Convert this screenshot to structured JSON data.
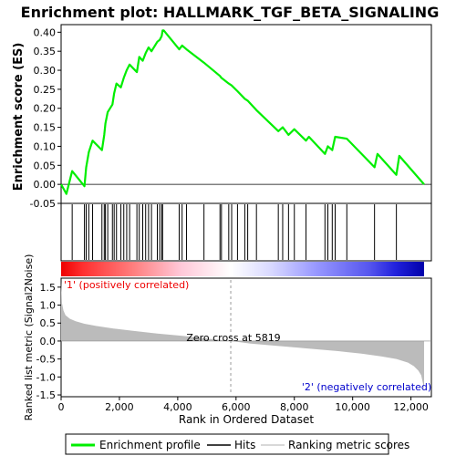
{
  "chart_data": {
    "type": "line",
    "title": "Enrichment plot: HALLMARK_TGF_BETA_SIGNALING",
    "es_panel": {
      "ylabel": "Enrichment score (ES)",
      "ylim": [
        -0.05,
        0.42
      ],
      "yticks": [
        "-0.05",
        "0.00",
        "0.05",
        "0.10",
        "0.15",
        "0.20",
        "0.25",
        "0.30",
        "0.35",
        "0.40"
      ],
      "ytick_values": [
        -0.05,
        0.0,
        0.05,
        0.1,
        0.15,
        0.2,
        0.25,
        0.3,
        0.35,
        0.4
      ],
      "series": [
        {
          "name": "Enrichment profile",
          "color": "#00ee00",
          "x": [
            0,
            180,
            380,
            800,
            860,
            950,
            1080,
            1400,
            1480,
            1520,
            1600,
            1760,
            1820,
            1900,
            2050,
            2150,
            2250,
            2350,
            2600,
            2680,
            2800,
            2900,
            3000,
            3100,
            3300,
            3380,
            3450,
            3480,
            3520,
            4050,
            4150,
            4300,
            4900,
            5450,
            5500,
            5750,
            5850,
            6050,
            6300,
            6400,
            6700,
            7450,
            7600,
            7800,
            8000,
            8400,
            8500,
            9050,
            9150,
            9300,
            9400,
            9800,
            10750,
            10850,
            11500,
            11600,
            12450
          ],
          "y": [
            0.0,
            -0.025,
            0.035,
            -0.005,
            0.045,
            0.085,
            0.115,
            0.09,
            0.13,
            0.16,
            0.19,
            0.21,
            0.24,
            0.265,
            0.255,
            0.28,
            0.3,
            0.315,
            0.295,
            0.335,
            0.325,
            0.345,
            0.36,
            0.35,
            0.375,
            0.38,
            0.39,
            0.405,
            0.405,
            0.355,
            0.365,
            0.355,
            0.32,
            0.285,
            0.28,
            0.265,
            0.26,
            0.245,
            0.225,
            0.22,
            0.195,
            0.14,
            0.15,
            0.13,
            0.145,
            0.115,
            0.125,
            0.08,
            0.1,
            0.09,
            0.125,
            0.12,
            0.045,
            0.08,
            0.025,
            0.075,
            0.0
          ]
        }
      ]
    },
    "hits": {
      "name": "Hits",
      "x": [
        380,
        800,
        860,
        950,
        1080,
        1400,
        1480,
        1520,
        1600,
        1760,
        1820,
        1900,
        2050,
        2150,
        2250,
        2350,
        2600,
        2680,
        2800,
        2900,
        3000,
        3100,
        3300,
        3380,
        3450,
        3480,
        4050,
        4150,
        4300,
        4900,
        5450,
        5500,
        5750,
        5850,
        6050,
        6300,
        6400,
        6700,
        7450,
        7600,
        7800,
        8000,
        8400,
        9050,
        9150,
        9300,
        9400,
        9800,
        10750,
        11500
      ]
    },
    "ranked_metric": {
      "name": "Ranking metric scores",
      "ylabel": "Ranked list metric (Signal2Noise)",
      "xlabel": "Rank in Ordered Dataset",
      "ylim": [
        -1.55,
        1.75
      ],
      "yticks": [
        "-1.5",
        "-1.0",
        "-0.5",
        "0.0",
        "0.5",
        "1.0",
        "1.5"
      ],
      "ytick_values": [
        -1.5,
        -1.0,
        -0.5,
        0.0,
        0.5,
        1.0,
        1.5
      ],
      "x": [
        0,
        30,
        80,
        150,
        300,
        500,
        800,
        1200,
        1800,
        2500,
        3300,
        4200,
        5000,
        5819,
        6500,
        7500,
        8500,
        9500,
        10300,
        11000,
        11500,
        11900,
        12100,
        12250,
        12350,
        12420,
        12450
      ],
      "y": [
        1.65,
        1.05,
        0.85,
        0.72,
        0.62,
        0.55,
        0.48,
        0.42,
        0.35,
        0.28,
        0.21,
        0.14,
        0.07,
        0.0,
        -0.07,
        -0.14,
        -0.21,
        -0.28,
        -0.35,
        -0.43,
        -0.5,
        -0.6,
        -0.7,
        -0.82,
        -0.95,
        -1.2,
        -1.4
      ],
      "zero_cross_label": "Zero cross at 5819",
      "zero_cross": 5819,
      "pos_label": "'1' (positively correlated)",
      "neg_label": "'2' (negatively correlated)"
    },
    "x_axis": {
      "xlim": [
        0,
        12700
      ],
      "xticks": [
        "0",
        "2,000",
        "4,000",
        "6,000",
        "8,000",
        "10,000",
        "12,000"
      ],
      "xtick_values": [
        0,
        2000,
        4000,
        6000,
        8000,
        10000,
        12000
      ]
    },
    "colors": {
      "profile": "#00ee00",
      "hits": "#000000",
      "metric_fill": "#bbbbbb",
      "pos": "#ee0000",
      "neg": "#0000cc"
    }
  },
  "legend": {
    "items": [
      {
        "label": "Enrichment profile"
      },
      {
        "label": "Hits"
      },
      {
        "label": "Ranking metric scores"
      }
    ]
  }
}
